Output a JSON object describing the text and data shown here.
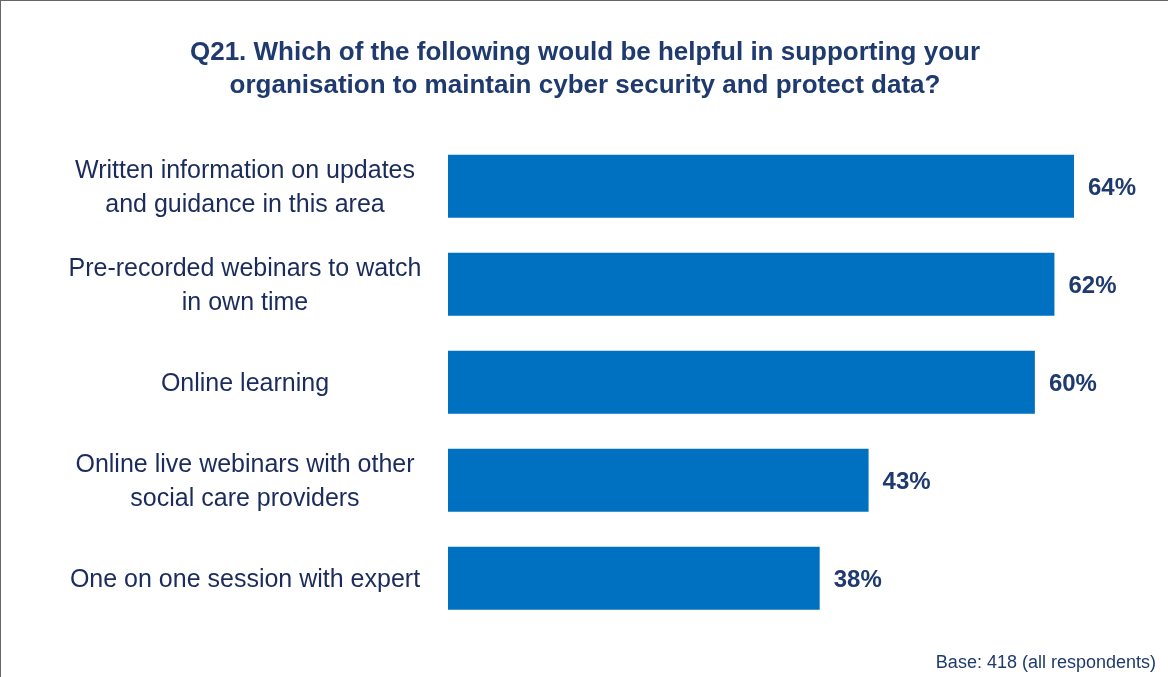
{
  "chart_data": {
    "type": "bar",
    "orientation": "horizontal",
    "title": "Q21. Which of the following would be helpful in supporting your organisation to maintain cyber security and protect data?",
    "categories": [
      "Written information on updates and guidance in this area",
      "Pre-recorded webinars to watch in own time",
      "Online learning",
      "Online live webinars with other social care providers",
      "One on one session with expert"
    ],
    "values": [
      64,
      62,
      60,
      43,
      38
    ],
    "value_labels": [
      "64%",
      "62%",
      "60%",
      "43%",
      "38%"
    ],
    "color": "#0070c0",
    "annotations": [
      "Base: 418 (all respondents)"
    ]
  }
}
